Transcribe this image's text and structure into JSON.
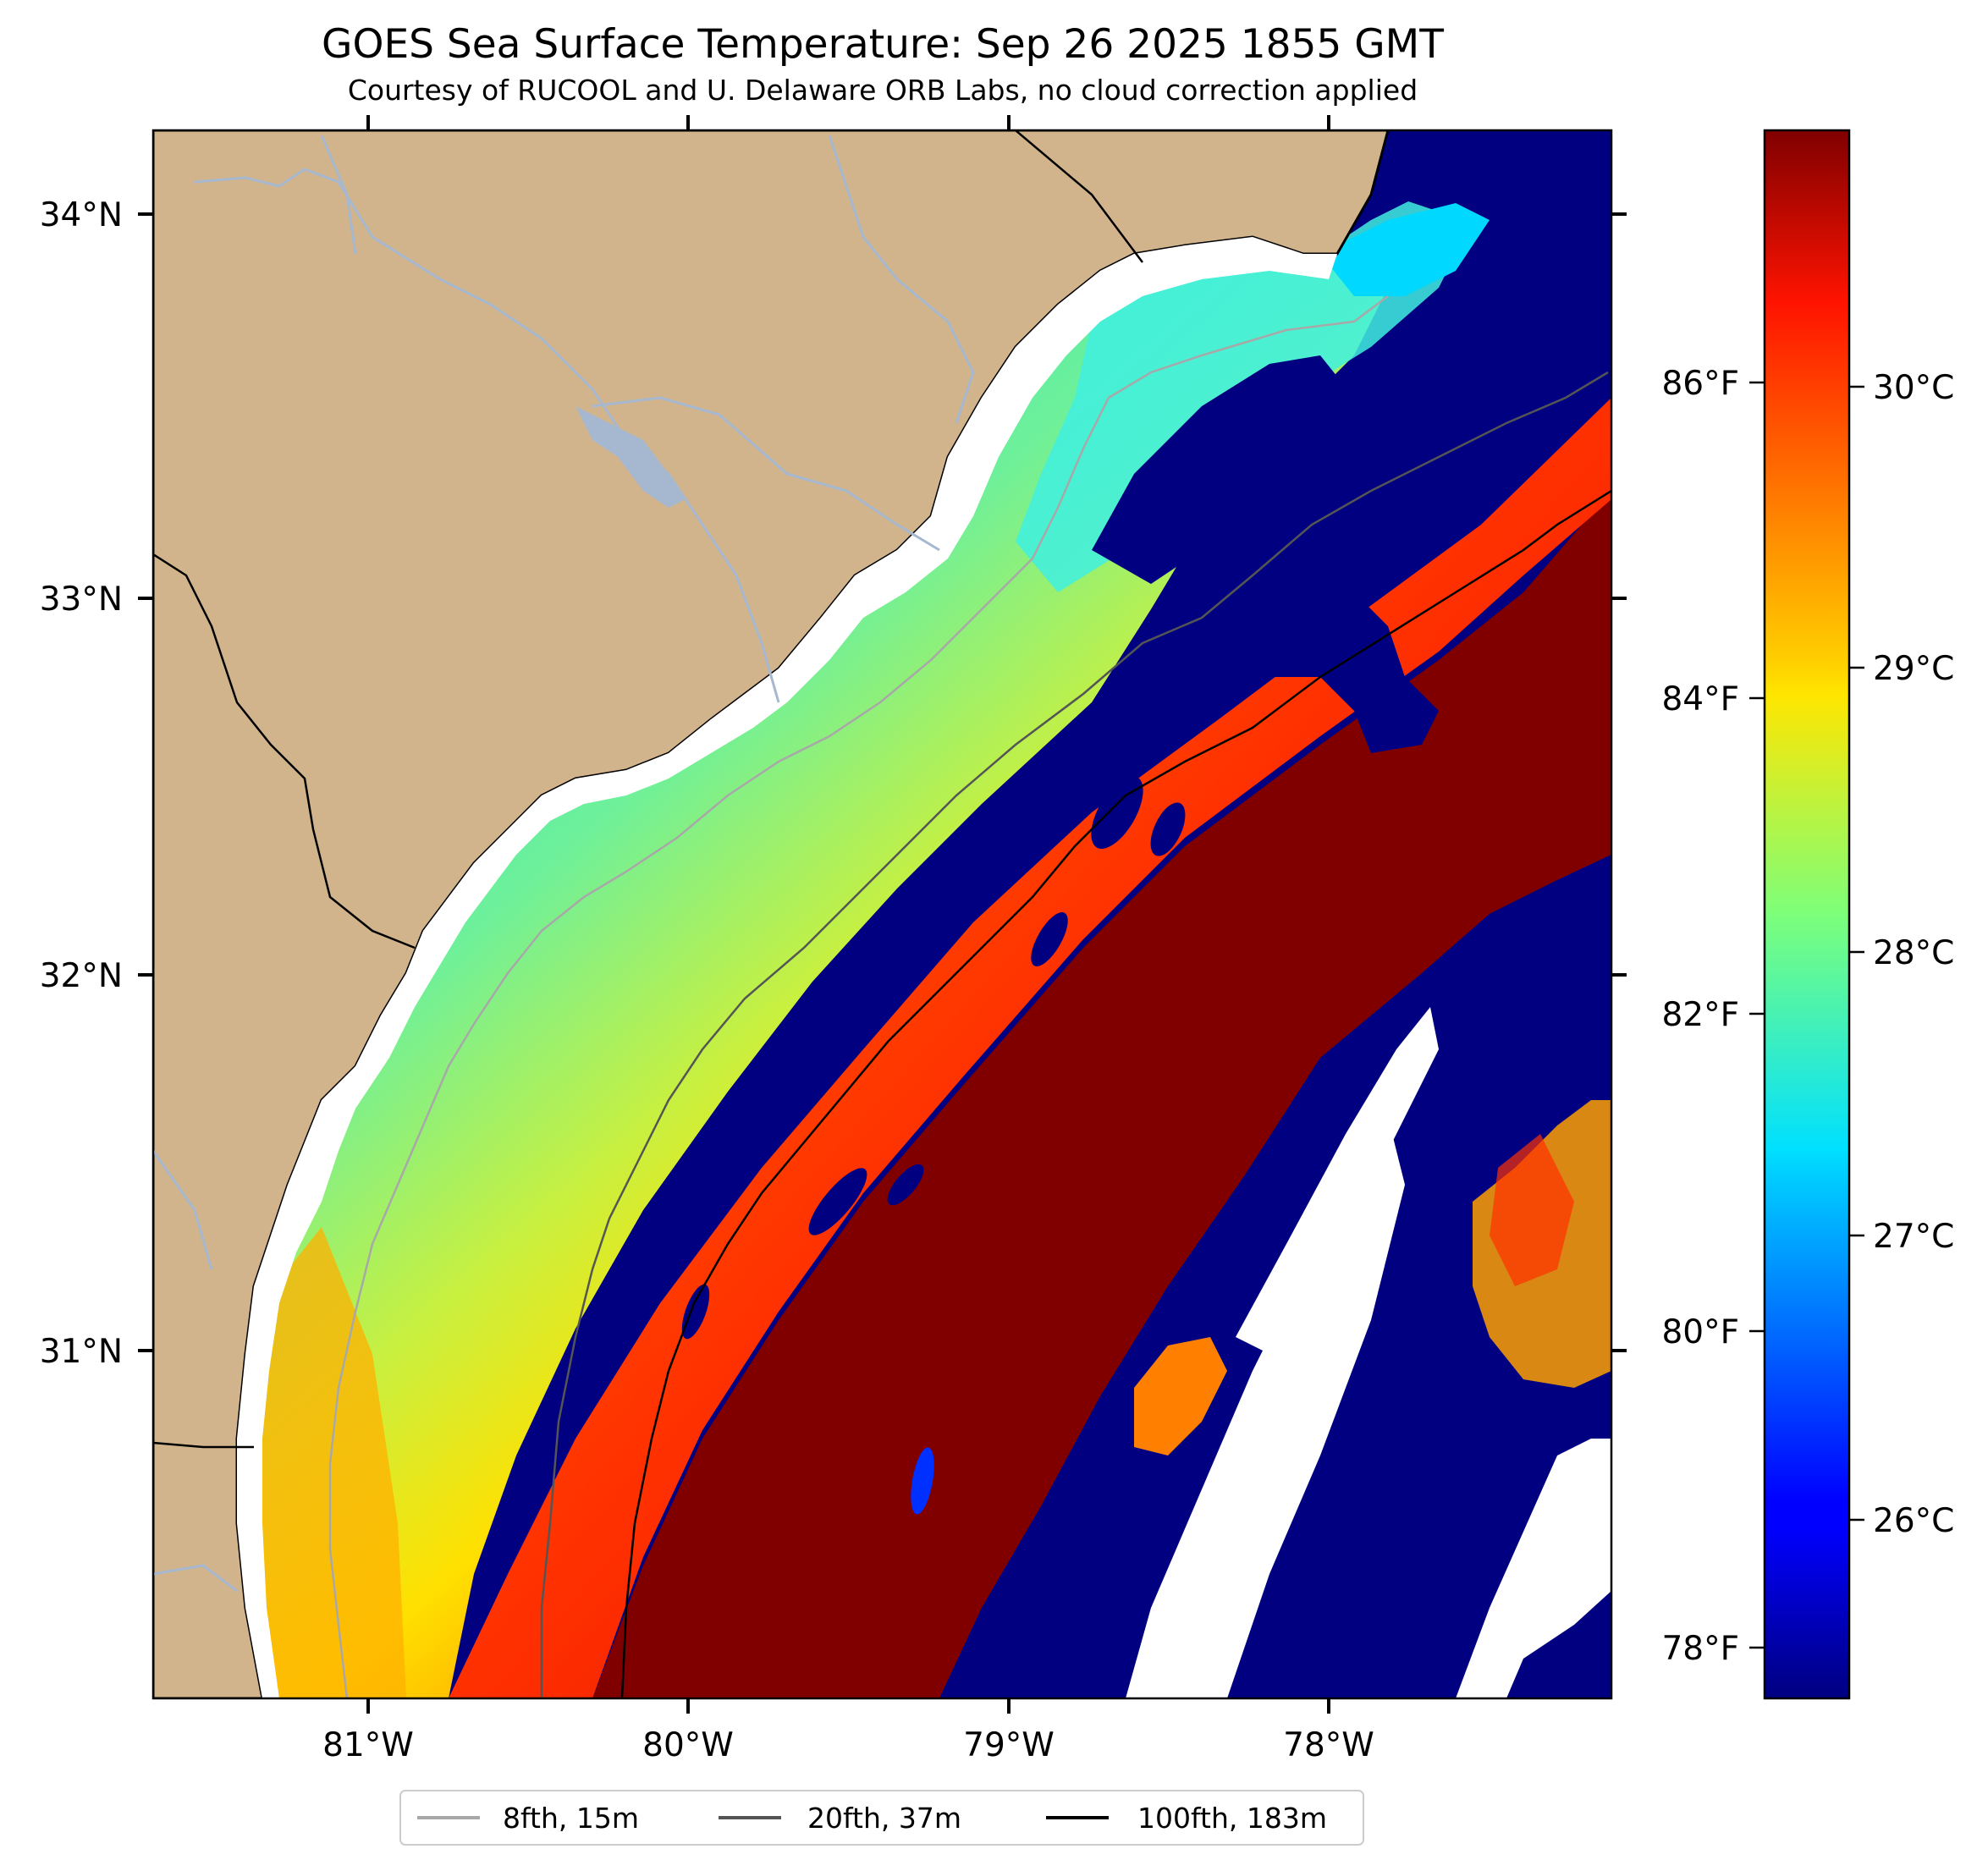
{
  "title": "GOES Sea Surface Temperature: Sep 26 2025 1855 GMT",
  "subtitle": "Courtesy of RUCOOL and U. Delaware ORB Labs, no cloud correction applied",
  "map": {
    "lat_labels": [
      "34°N",
      "33°N",
      "32°N",
      "31°N"
    ],
    "lon_labels": [
      "81°W",
      "80°W",
      "79°W",
      "78°W"
    ],
    "colors": {
      "land": "#d2b48c",
      "coast": "#000000",
      "river": "#a6b8d0",
      "no_data": "#ffffff",
      "cold": "#000080",
      "warm": "#800000"
    }
  },
  "colorbar": {
    "celsius_labels": [
      "30°C",
      "29°C",
      "28°C",
      "27°C",
      "26°C"
    ],
    "fahrenheit_labels": [
      "86°F",
      "84°F",
      "82°F",
      "80°F",
      "78°F"
    ]
  },
  "legend": {
    "items": [
      {
        "label": "8fth, 15m",
        "color": "#a8a8a8"
      },
      {
        "label": "20fth, 37m",
        "color": "#555555"
      },
      {
        "label": "100fth, 183m",
        "color": "#000000"
      }
    ]
  }
}
